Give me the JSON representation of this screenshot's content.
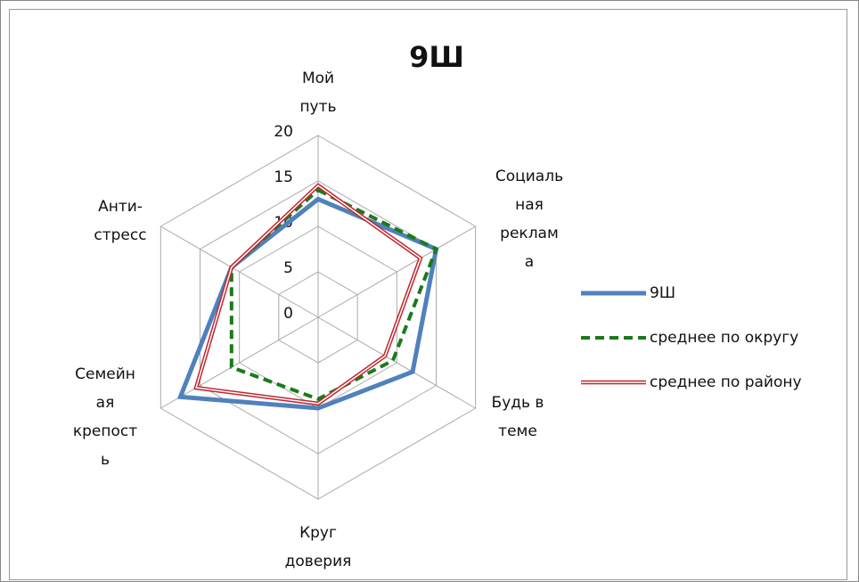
{
  "chart_data": {
    "type": "radar",
    "title": "9Ш",
    "categories": [
      [
        "Мой",
        "путь"
      ],
      [
        "Социаль",
        "ная",
        "реклам",
        "а"
      ],
      [
        "Будь в",
        "теме"
      ],
      [
        "Круг",
        "доверия"
      ],
      [
        "Семейн",
        "ая",
        "крепост",
        "ь"
      ],
      [
        "Анти-",
        "стресс"
      ]
    ],
    "series": [
      {
        "name": "9Ш",
        "color": "#4f81bd",
        "values": [
          13,
          15,
          12,
          10,
          17.5,
          11
        ]
      },
      {
        "name": "среднее по округу",
        "color": "#1a7a1a",
        "values": [
          14,
          15,
          9.5,
          9,
          11,
          11
        ]
      },
      {
        "name": "среднее по району",
        "color": "#c0272d",
        "values": [
          14.5,
          13,
          8.5,
          9.5,
          15.5,
          11
        ]
      }
    ],
    "ylim": [
      0,
      20
    ],
    "yticks": [
      0,
      5,
      10,
      15,
      20
    ],
    "grid": true,
    "legend": "right"
  }
}
